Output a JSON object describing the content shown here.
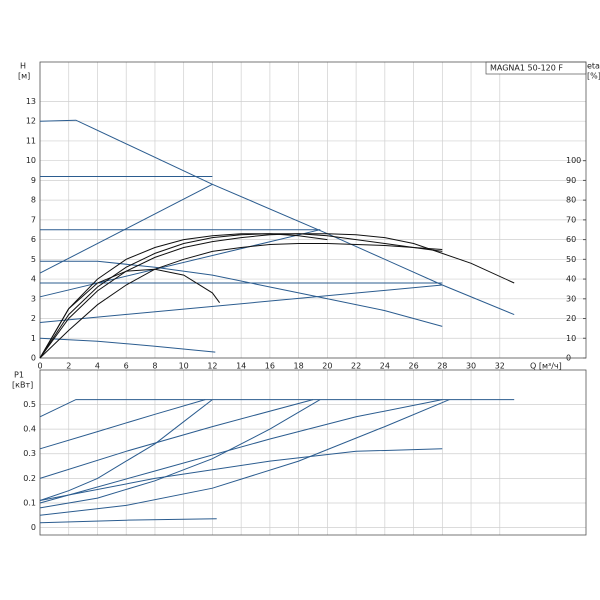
{
  "chart_data": [
    {
      "type": "line",
      "title": "MAGNA1 50-120 F",
      "ylabel": "H",
      "yunit": "[м]",
      "y2label": "eta",
      "y2unit": "[%]",
      "xlabel": "Q [м³/ч]",
      "xlim": [
        0,
        38
      ],
      "ylim": [
        0,
        15
      ],
      "y2lim": [
        0,
        150
      ],
      "xticks": [
        0,
        2,
        4,
        6,
        8,
        10,
        12,
        14,
        16,
        18,
        20,
        22,
        24,
        26,
        28,
        30,
        32
      ],
      "yticks": [
        0,
        1,
        2,
        3,
        4,
        5,
        6,
        7,
        8,
        9,
        10,
        11,
        12,
        13
      ],
      "y2ticks": [
        0,
        10,
        20,
        30,
        40,
        50,
        60,
        70,
        80,
        90,
        100
      ],
      "grid": true,
      "series": [
        {
          "color": "#2b5c8f",
          "x": [
            0,
            2.5,
            12,
            20,
            28,
            33
          ],
          "values": [
            12,
            12.05,
            8.8,
            6.3,
            3.7,
            2.2
          ]
        },
        {
          "color": "#2b5c8f",
          "x": [
            0,
            12
          ],
          "values": [
            9.2,
            9.2
          ]
        },
        {
          "color": "#2b5c8f",
          "x": [
            0,
            19.5
          ],
          "values": [
            6.5,
            6.5
          ]
        },
        {
          "color": "#2b5c8f",
          "x": [
            0,
            28
          ],
          "values": [
            3.8,
            3.8
          ]
        },
        {
          "color": "#2b5c8f",
          "x": [
            0,
            12
          ],
          "values": [
            4.3,
            8.8
          ]
        },
        {
          "color": "#2b5c8f",
          "x": [
            0,
            19.5
          ],
          "values": [
            3.1,
            6.5
          ]
        },
        {
          "color": "#2b5c8f",
          "x": [
            0,
            28
          ],
          "values": [
            1.8,
            3.7
          ]
        },
        {
          "color": "#2b5c8f",
          "x": [
            0,
            4,
            8,
            12,
            16,
            20,
            24,
            28
          ],
          "values": [
            4.9,
            4.9,
            4.6,
            4.2,
            3.6,
            3.0,
            2.4,
            1.6
          ]
        },
        {
          "color": "#2b5c8f",
          "x": [
            0,
            4,
            8,
            12.2
          ],
          "values": [
            1.0,
            0.85,
            0.6,
            0.3
          ]
        },
        {
          "color": "#111111",
          "axis": "y2",
          "x": [
            0,
            2,
            4,
            6,
            8,
            10,
            12,
            14,
            16,
            18,
            20,
            22,
            24,
            26,
            28,
            30,
            33
          ],
          "values": [
            0,
            20,
            34,
            44,
            51,
            56,
            59,
            61,
            62.5,
            63,
            63,
            62.5,
            61,
            58,
            53,
            48,
            38
          ]
        },
        {
          "color": "#111111",
          "axis": "y2",
          "x": [
            0,
            2,
            4,
            6,
            8,
            10,
            12,
            14,
            16,
            18,
            20,
            22,
            24,
            26,
            28
          ],
          "values": [
            0,
            22,
            36,
            46,
            53,
            58,
            61,
            62.5,
            63,
            63,
            62,
            60,
            58,
            56,
            54
          ]
        },
        {
          "color": "#111111",
          "axis": "y2",
          "x": [
            0,
            2,
            4,
            6,
            8,
            10,
            12,
            14,
            16,
            18,
            20
          ],
          "values": [
            0,
            25,
            40,
            50,
            56,
            60,
            62,
            63,
            63,
            62,
            60
          ]
        },
        {
          "color": "#111111",
          "axis": "y2",
          "x": [
            0,
            2,
            4,
            6,
            8,
            10,
            12,
            12.5
          ],
          "values": [
            0,
            25,
            38,
            44,
            45,
            42,
            33,
            28
          ]
        },
        {
          "color": "#111111",
          "axis": "y2",
          "x": [
            0,
            2,
            4,
            6,
            8,
            10,
            12,
            14,
            16,
            18,
            20,
            24,
            28
          ],
          "values": [
            0,
            14,
            27,
            37,
            45,
            50,
            54,
            56,
            57.5,
            58,
            58,
            57,
            55
          ]
        }
      ]
    },
    {
      "type": "line",
      "ylabel": "P1",
      "yunit": "[кВт]",
      "xlim": [
        0,
        38
      ],
      "ylim": [
        -0.03,
        0.64
      ],
      "xticks": [
        0,
        2,
        4,
        6,
        8,
        10,
        12,
        14,
        16,
        18,
        20,
        22,
        24,
        26,
        28,
        30,
        32
      ],
      "yticks": [
        0,
        0.1,
        0.2,
        0.3,
        0.4,
        0.5
      ],
      "grid": true,
      "series": [
        {
          "color": "#2b5c8f",
          "x": [
            0,
            2.5,
            33
          ],
          "values": [
            0.45,
            0.52,
            0.52
          ]
        },
        {
          "color": "#2b5c8f",
          "x": [
            0,
            4,
            8,
            11.5
          ],
          "values": [
            0.32,
            0.39,
            0.46,
            0.52
          ]
        },
        {
          "color": "#2b5c8f",
          "x": [
            0,
            6,
            12,
            19
          ],
          "values": [
            0.2,
            0.31,
            0.41,
            0.52
          ]
        },
        {
          "color": "#2b5c8f",
          "x": [
            0,
            8,
            16,
            22,
            28
          ],
          "values": [
            0.1,
            0.23,
            0.36,
            0.45,
            0.52
          ]
        },
        {
          "color": "#2b5c8f",
          "x": [
            0,
            2,
            4,
            6,
            8,
            10,
            12
          ],
          "values": [
            0.11,
            0.15,
            0.2,
            0.27,
            0.34,
            0.43,
            0.52
          ]
        },
        {
          "color": "#2b5c8f",
          "x": [
            0,
            4,
            8,
            12,
            16,
            19.5
          ],
          "values": [
            0.08,
            0.12,
            0.19,
            0.28,
            0.4,
            0.52
          ]
        },
        {
          "color": "#2b5c8f",
          "x": [
            0,
            6,
            12,
            18,
            24,
            28.5
          ],
          "values": [
            0.05,
            0.09,
            0.16,
            0.27,
            0.41,
            0.52
          ]
        },
        {
          "color": "#2b5c8f",
          "x": [
            0,
            6,
            12.3
          ],
          "values": [
            0.02,
            0.03,
            0.036
          ]
        },
        {
          "color": "#2b5c8f",
          "x": [
            0,
            8,
            16,
            22,
            28
          ],
          "values": [
            0.11,
            0.2,
            0.27,
            0.31,
            0.32
          ]
        }
      ]
    }
  ]
}
